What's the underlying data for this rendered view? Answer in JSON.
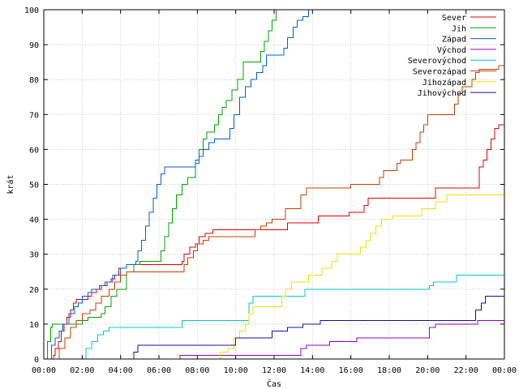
{
  "chart_data": {
    "type": "line",
    "title": "",
    "xlabel": "Čas",
    "ylabel": "krát",
    "xlim": [
      0,
      24
    ],
    "ylim": [
      0,
      100
    ],
    "x_ticks": [
      0,
      2,
      4,
      6,
      8,
      10,
      12,
      14,
      16,
      18,
      20,
      22,
      24
    ],
    "x_tick_labels": [
      "00:00",
      "02:00",
      "04:00",
      "06:00",
      "08:00",
      "10:00",
      "12:00",
      "14:00",
      "16:00",
      "18:00",
      "20:00",
      "22:00",
      "00:00"
    ],
    "y_ticks": [
      0,
      10,
      20,
      30,
      40,
      50,
      60,
      70,
      80,
      90,
      100
    ],
    "y_tick_labels": [
      "0",
      "10",
      "20",
      "30",
      "40",
      "50",
      "60",
      "70",
      "80",
      "90",
      "100"
    ],
    "grid": true,
    "legend_position": "top-right",
    "step": true,
    "series": [
      {
        "name": "Sever",
        "color": "#e00000",
        "points": [
          [
            0,
            0
          ],
          [
            0.5,
            1
          ],
          [
            0.6,
            3
          ],
          [
            0.75,
            5
          ],
          [
            0.9,
            8
          ],
          [
            1.05,
            10
          ],
          [
            1.2,
            12
          ],
          [
            1.4,
            14
          ],
          [
            1.55,
            16
          ],
          [
            1.7,
            17
          ],
          [
            2.3,
            18
          ],
          [
            2.5,
            19
          ],
          [
            2.75,
            20
          ],
          [
            3.0,
            21
          ],
          [
            3.3,
            22
          ],
          [
            3.5,
            23
          ],
          [
            3.7,
            24
          ],
          [
            3.9,
            26
          ],
          [
            4.3,
            27
          ],
          [
            7.2,
            28
          ],
          [
            7.3,
            30
          ],
          [
            7.6,
            32
          ],
          [
            7.9,
            33
          ],
          [
            8.1,
            35
          ],
          [
            8.4,
            36
          ],
          [
            8.8,
            37
          ],
          [
            11.0,
            37
          ],
          [
            12.7,
            37
          ],
          [
            12.7,
            39
          ],
          [
            14.1,
            39
          ],
          [
            14.3,
            41
          ],
          [
            15.7,
            41
          ],
          [
            15.9,
            42
          ],
          [
            16.2,
            42
          ],
          [
            16.7,
            44
          ],
          [
            16.9,
            46
          ],
          [
            20.3,
            46
          ],
          [
            20.4,
            49
          ],
          [
            22.5,
            49
          ],
          [
            22.7,
            55
          ],
          [
            22.9,
            57
          ],
          [
            23.1,
            60
          ],
          [
            23.3,
            63
          ],
          [
            23.5,
            66
          ],
          [
            23.7,
            67
          ],
          [
            24,
            67
          ]
        ]
      },
      {
        "name": "Jih",
        "color": "#00a000",
        "points": [
          [
            0,
            0
          ],
          [
            0.2,
            5
          ],
          [
            0.35,
            9
          ],
          [
            0.45,
            10
          ],
          [
            1.9,
            10
          ],
          [
            2.0,
            11
          ],
          [
            2.3,
            12
          ],
          [
            3.0,
            13
          ],
          [
            3.2,
            15
          ],
          [
            3.5,
            18
          ],
          [
            3.8,
            20
          ],
          [
            4.3,
            25
          ],
          [
            4.7,
            27
          ],
          [
            5.0,
            28
          ],
          [
            6.0,
            28
          ],
          [
            6.1,
            31
          ],
          [
            6.3,
            35
          ],
          [
            6.5,
            39
          ],
          [
            6.7,
            43
          ],
          [
            6.9,
            47
          ],
          [
            7.2,
            50
          ],
          [
            7.5,
            52
          ],
          [
            7.9,
            56
          ],
          [
            8.1,
            60
          ],
          [
            8.3,
            63
          ],
          [
            8.5,
            65
          ],
          [
            8.9,
            67
          ],
          [
            9.1,
            70
          ],
          [
            9.3,
            72
          ],
          [
            9.5,
            74
          ],
          [
            9.8,
            77
          ],
          [
            10.1,
            80
          ],
          [
            10.4,
            85
          ],
          [
            11.2,
            85
          ],
          [
            11.3,
            88
          ],
          [
            11.5,
            91
          ],
          [
            11.7,
            94
          ],
          [
            11.9,
            97
          ],
          [
            12.1,
            100
          ],
          [
            24,
            100
          ]
        ]
      },
      {
        "name": "Západ",
        "color": "#0060d0",
        "points": [
          [
            0,
            0
          ],
          [
            0.4,
            4
          ],
          [
            0.6,
            6
          ],
          [
            0.8,
            8
          ],
          [
            1.0,
            10
          ],
          [
            1.3,
            13
          ],
          [
            1.6,
            15
          ],
          [
            1.8,
            16
          ],
          [
            2.0,
            18
          ],
          [
            2.3,
            19
          ],
          [
            2.5,
            20
          ],
          [
            2.9,
            21
          ],
          [
            3.2,
            22
          ],
          [
            3.6,
            24
          ],
          [
            4.0,
            26
          ],
          [
            4.3,
            27
          ],
          [
            4.8,
            28
          ],
          [
            4.9,
            31
          ],
          [
            5.1,
            34
          ],
          [
            5.3,
            38
          ],
          [
            5.5,
            42
          ],
          [
            5.7,
            46
          ],
          [
            5.9,
            50
          ],
          [
            6.1,
            53
          ],
          [
            6.3,
            55
          ],
          [
            7.7,
            55
          ],
          [
            7.9,
            57
          ],
          [
            8.1,
            58
          ],
          [
            8.3,
            60
          ],
          [
            8.6,
            62
          ],
          [
            8.9,
            63
          ],
          [
            9.5,
            63
          ],
          [
            9.7,
            66
          ],
          [
            9.9,
            70
          ],
          [
            10.2,
            75
          ],
          [
            10.5,
            78
          ],
          [
            10.8,
            80
          ],
          [
            11.1,
            82
          ],
          [
            11.4,
            84
          ],
          [
            11.6,
            87
          ],
          [
            12.4,
            87
          ],
          [
            12.5,
            89
          ],
          [
            12.7,
            92
          ],
          [
            13.0,
            95
          ],
          [
            13.2,
            97
          ],
          [
            13.5,
            98
          ],
          [
            13.8,
            100
          ],
          [
            24,
            100
          ]
        ]
      },
      {
        "name": "Východ",
        "color": "#9000c0",
        "points": [
          [
            0,
            0
          ],
          [
            7.0,
            0
          ],
          [
            7.1,
            1
          ],
          [
            13.2,
            1
          ],
          [
            13.4,
            3
          ],
          [
            13.7,
            4
          ],
          [
            14.6,
            4
          ],
          [
            14.9,
            5
          ],
          [
            16.0,
            5
          ],
          [
            16.3,
            6
          ],
          [
            19.7,
            6
          ],
          [
            20.1,
            9
          ],
          [
            20.4,
            10
          ],
          [
            22.4,
            10
          ],
          [
            22.6,
            11
          ],
          [
            24,
            11
          ]
        ]
      },
      {
        "name": "Severovýchod",
        "color": "#00c8d0",
        "points": [
          [
            0,
            0
          ],
          [
            2.1,
            0
          ],
          [
            2.2,
            3
          ],
          [
            2.5,
            5
          ],
          [
            2.8,
            7
          ],
          [
            3.1,
            8
          ],
          [
            3.4,
            9
          ],
          [
            7.1,
            9
          ],
          [
            7.2,
            11
          ],
          [
            10.5,
            11
          ],
          [
            10.7,
            16
          ],
          [
            10.9,
            18
          ],
          [
            13.4,
            18
          ],
          [
            13.6,
            20
          ],
          [
            19.9,
            20
          ],
          [
            20.1,
            21
          ],
          [
            20.3,
            22
          ],
          [
            21.3,
            22
          ],
          [
            21.5,
            24
          ],
          [
            24,
            24
          ]
        ]
      },
      {
        "name": "Severozápad",
        "color": "#c04000",
        "points": [
          [
            0,
            0
          ],
          [
            0.6,
            0
          ],
          [
            0.8,
            3
          ],
          [
            1.1,
            6
          ],
          [
            1.4,
            9
          ],
          [
            1.7,
            11
          ],
          [
            2.0,
            13
          ],
          [
            2.4,
            14
          ],
          [
            2.7,
            16
          ],
          [
            3.0,
            18
          ],
          [
            3.4,
            20
          ],
          [
            3.7,
            22
          ],
          [
            4.0,
            24
          ],
          [
            4.3,
            25
          ],
          [
            7.2,
            25
          ],
          [
            7.3,
            27
          ],
          [
            7.5,
            29
          ],
          [
            7.8,
            31
          ],
          [
            8.0,
            33
          ],
          [
            8.3,
            34
          ],
          [
            8.6,
            35
          ],
          [
            10.8,
            35
          ],
          [
            11.0,
            37
          ],
          [
            11.3,
            38
          ],
          [
            11.6,
            39
          ],
          [
            11.9,
            40
          ],
          [
            12.5,
            40
          ],
          [
            12.6,
            43
          ],
          [
            13.2,
            43
          ],
          [
            13.4,
            47
          ],
          [
            13.7,
            49
          ],
          [
            15.8,
            49
          ],
          [
            16.0,
            50
          ],
          [
            17.3,
            50
          ],
          [
            17.5,
            52
          ],
          [
            17.7,
            54
          ],
          [
            18.2,
            54
          ],
          [
            18.4,
            56
          ],
          [
            18.6,
            57
          ],
          [
            19.0,
            57
          ],
          [
            19.2,
            60
          ],
          [
            19.4,
            62
          ],
          [
            19.6,
            65
          ],
          [
            19.8,
            67
          ],
          [
            20.0,
            70
          ],
          [
            21.3,
            70
          ],
          [
            21.4,
            73
          ],
          [
            21.6,
            76
          ],
          [
            21.8,
            78
          ],
          [
            22.2,
            78
          ],
          [
            22.3,
            80
          ],
          [
            22.5,
            82
          ],
          [
            22.7,
            83
          ],
          [
            23.5,
            83
          ],
          [
            23.7,
            84
          ],
          [
            24,
            84
          ]
        ]
      },
      {
        "name": "Jihozápad",
        "color": "#f0e000",
        "points": [
          [
            0,
            0
          ],
          [
            9.0,
            0
          ],
          [
            9.2,
            2
          ],
          [
            9.6,
            3
          ],
          [
            9.9,
            6
          ],
          [
            10.2,
            8
          ],
          [
            10.5,
            10
          ],
          [
            10.7,
            13
          ],
          [
            10.9,
            15
          ],
          [
            12.3,
            15
          ],
          [
            12.4,
            18
          ],
          [
            12.6,
            20
          ],
          [
            12.9,
            22
          ],
          [
            13.6,
            22
          ],
          [
            13.8,
            24
          ],
          [
            14.3,
            24
          ],
          [
            14.5,
            26
          ],
          [
            14.8,
            26
          ],
          [
            15.0,
            28
          ],
          [
            15.3,
            30
          ],
          [
            16.3,
            30
          ],
          [
            16.5,
            32
          ],
          [
            16.8,
            34
          ],
          [
            17.0,
            36
          ],
          [
            17.3,
            38
          ],
          [
            17.6,
            40
          ],
          [
            18.2,
            41
          ],
          [
            19.5,
            41
          ],
          [
            19.7,
            43
          ],
          [
            20.2,
            43
          ],
          [
            20.4,
            45
          ],
          [
            20.8,
            45
          ],
          [
            21.0,
            47
          ],
          [
            24,
            47
          ]
        ]
      },
      {
        "name": "Jihovýchod",
        "color": "#1010a0",
        "points": [
          [
            0,
            0
          ],
          [
            4.6,
            0
          ],
          [
            4.7,
            2
          ],
          [
            4.9,
            4
          ],
          [
            9.8,
            4
          ],
          [
            10.0,
            6
          ],
          [
            11.7,
            6
          ],
          [
            11.9,
            8
          ],
          [
            12.5,
            8
          ],
          [
            12.7,
            9
          ],
          [
            13.3,
            9
          ],
          [
            13.5,
            10
          ],
          [
            14.2,
            10
          ],
          [
            14.4,
            11
          ],
          [
            22.2,
            11
          ],
          [
            22.5,
            14
          ],
          [
            22.8,
            16
          ],
          [
            23.0,
            18
          ],
          [
            24,
            18
          ]
        ]
      }
    ]
  }
}
